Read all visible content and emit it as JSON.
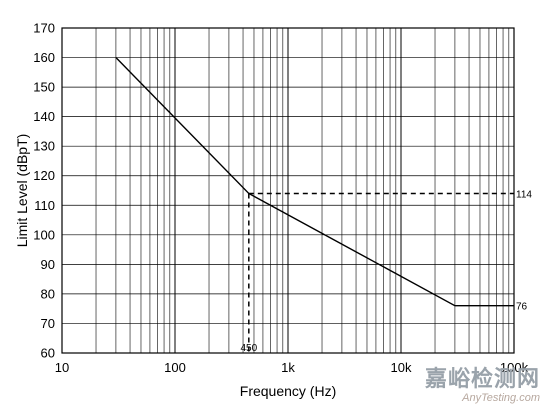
{
  "chart_data": {
    "type": "line",
    "xscale": "log",
    "xlim": [
      10,
      100000
    ],
    "ylim": [
      60,
      170
    ],
    "grid": true,
    "xlabel": "Frequency (Hz)",
    "ylabel": "Limit Level (dBpT)",
    "x_ticks": [
      {
        "value": 10,
        "label": "10"
      },
      {
        "value": 100,
        "label": "100"
      },
      {
        "value": 1000,
        "label": "1k"
      },
      {
        "value": 10000,
        "label": "10k"
      },
      {
        "value": 100000,
        "label": "100k"
      }
    ],
    "y_ticks": [
      60,
      70,
      80,
      90,
      100,
      110,
      120,
      130,
      140,
      150,
      160,
      170
    ],
    "series": [
      {
        "x": [
          30,
          450,
          30000,
          100000
        ],
        "y": [
          160,
          114,
          76,
          76
        ]
      }
    ],
    "reference_lines": [
      {
        "label": "450",
        "x": 450,
        "y_from": 60,
        "y_to": 114
      },
      {
        "label": "114",
        "y": 114,
        "x_from": 450,
        "x_to": 100000
      }
    ],
    "end_labels": [
      {
        "text": "114",
        "y": 114
      },
      {
        "text": "76",
        "y": 76
      }
    ]
  },
  "watermark": {
    "brand": "嘉峪检测网",
    "url": "AnyTesting.com"
  }
}
